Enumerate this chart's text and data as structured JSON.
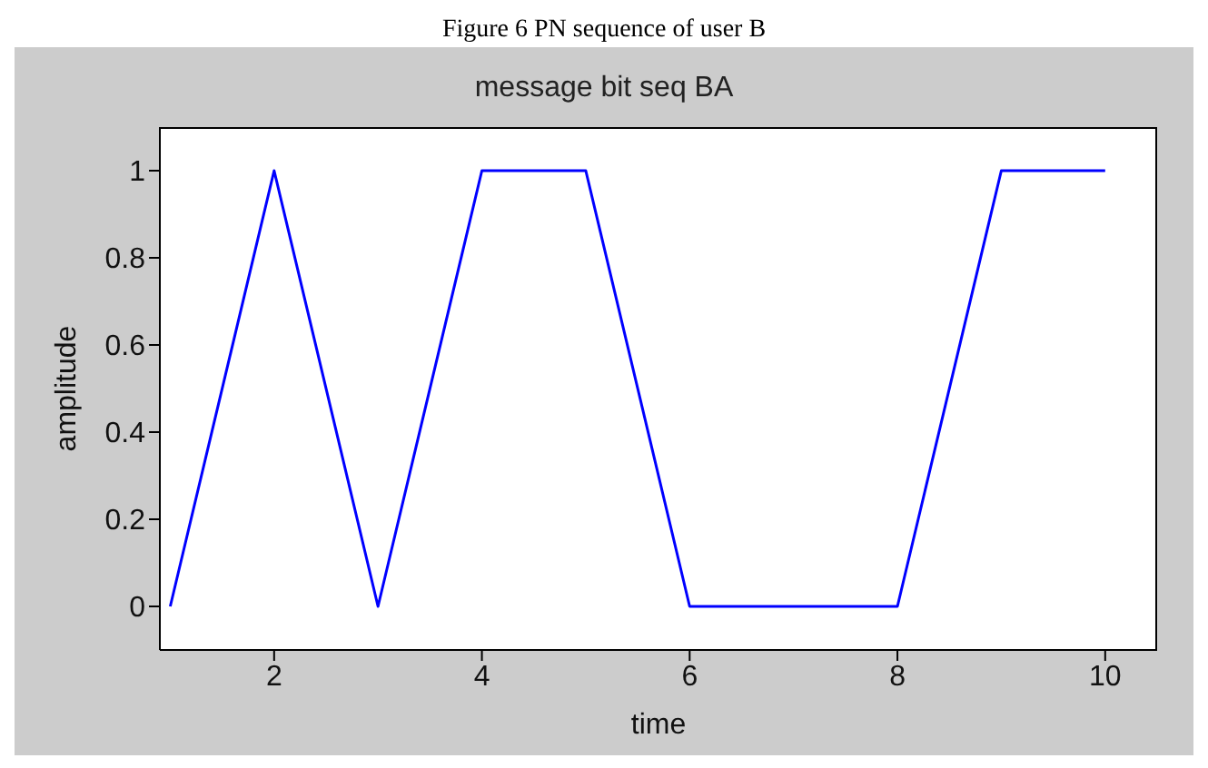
{
  "chart_data": {
    "type": "line",
    "title": "message bit seq BA",
    "xlabel": "time",
    "ylabel": "amplitude",
    "annotations": [
      "Figure 6 PN sequence of user B"
    ],
    "x": [
      1,
      2,
      3,
      4,
      5,
      6,
      7,
      8,
      9,
      10
    ],
    "series": [
      {
        "color": "#0000ff",
        "values": [
          0,
          1,
          0,
          1,
          1,
          0,
          0,
          0,
          1,
          1
        ]
      }
    ],
    "xlim": [
      0.9,
      10.5
    ],
    "xticks": [
      2,
      4,
      6,
      8,
      10
    ],
    "ylim": [
      -0.1,
      1.1
    ],
    "yticks": [
      0,
      0.2,
      0.4,
      0.6,
      0.8,
      1
    ],
    "grid": false,
    "legend": false,
    "marker": "none",
    "line_style": "solid"
  }
}
